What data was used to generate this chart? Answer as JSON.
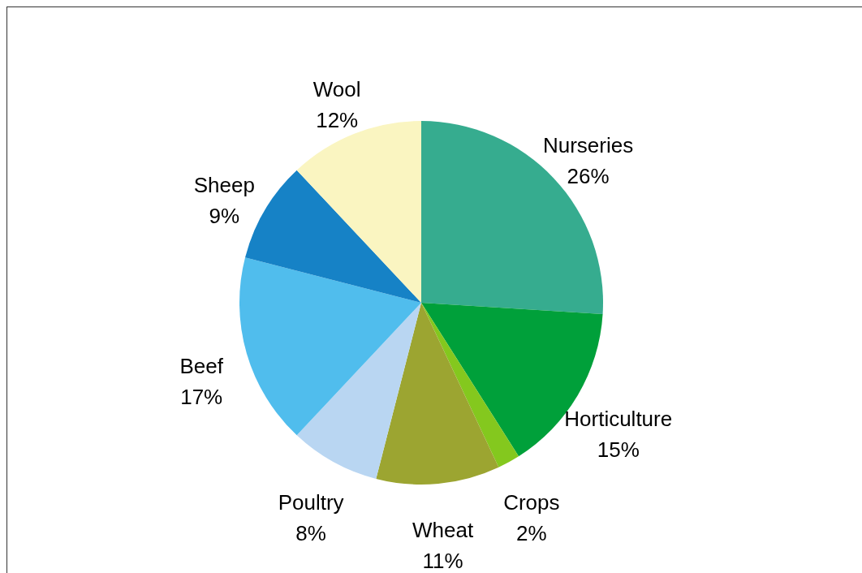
{
  "chart_data": {
    "type": "pie",
    "categories": [
      "Nurseries",
      "Horticulture",
      "Crops",
      "Wheat",
      "Poultry",
      "Beef",
      "Sheep",
      "Wool"
    ],
    "values": [
      26,
      15,
      2,
      11,
      8,
      17,
      9,
      12
    ],
    "value_labels": [
      "26%",
      "15%",
      "2%",
      "11%",
      "8%",
      "17%",
      "9%",
      "12%"
    ],
    "colors": [
      "#36ac8f",
      "#00a03a",
      "#84c81e",
      "#9ca531",
      "#b9d6f2",
      "#50bded",
      "#1682c6",
      "#faf5c1"
    ]
  }
}
